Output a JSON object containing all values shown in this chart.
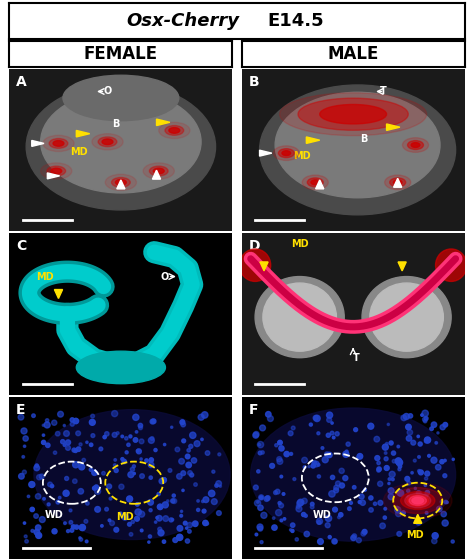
{
  "title_italic_part": "Osx-Cherry",
  "title_normal_part": "  E14.5",
  "col_left": "FEMALE",
  "col_right": "MALE",
  "border_color": "#000000",
  "bg_color": "#ffffff",
  "title_bg": "#ffffff",
  "header_bg": "#ffffff",
  "fig_width": 4.74,
  "fig_height": 5.59,
  "dpi": 100,
  "yellow_color": "#FFE000",
  "white_color": "#ffffff",
  "red_color": "#cc0000",
  "cyan_color": "#00bbbb",
  "pink_color": "#ff4488",
  "blue_dot_color": "#3344dd"
}
